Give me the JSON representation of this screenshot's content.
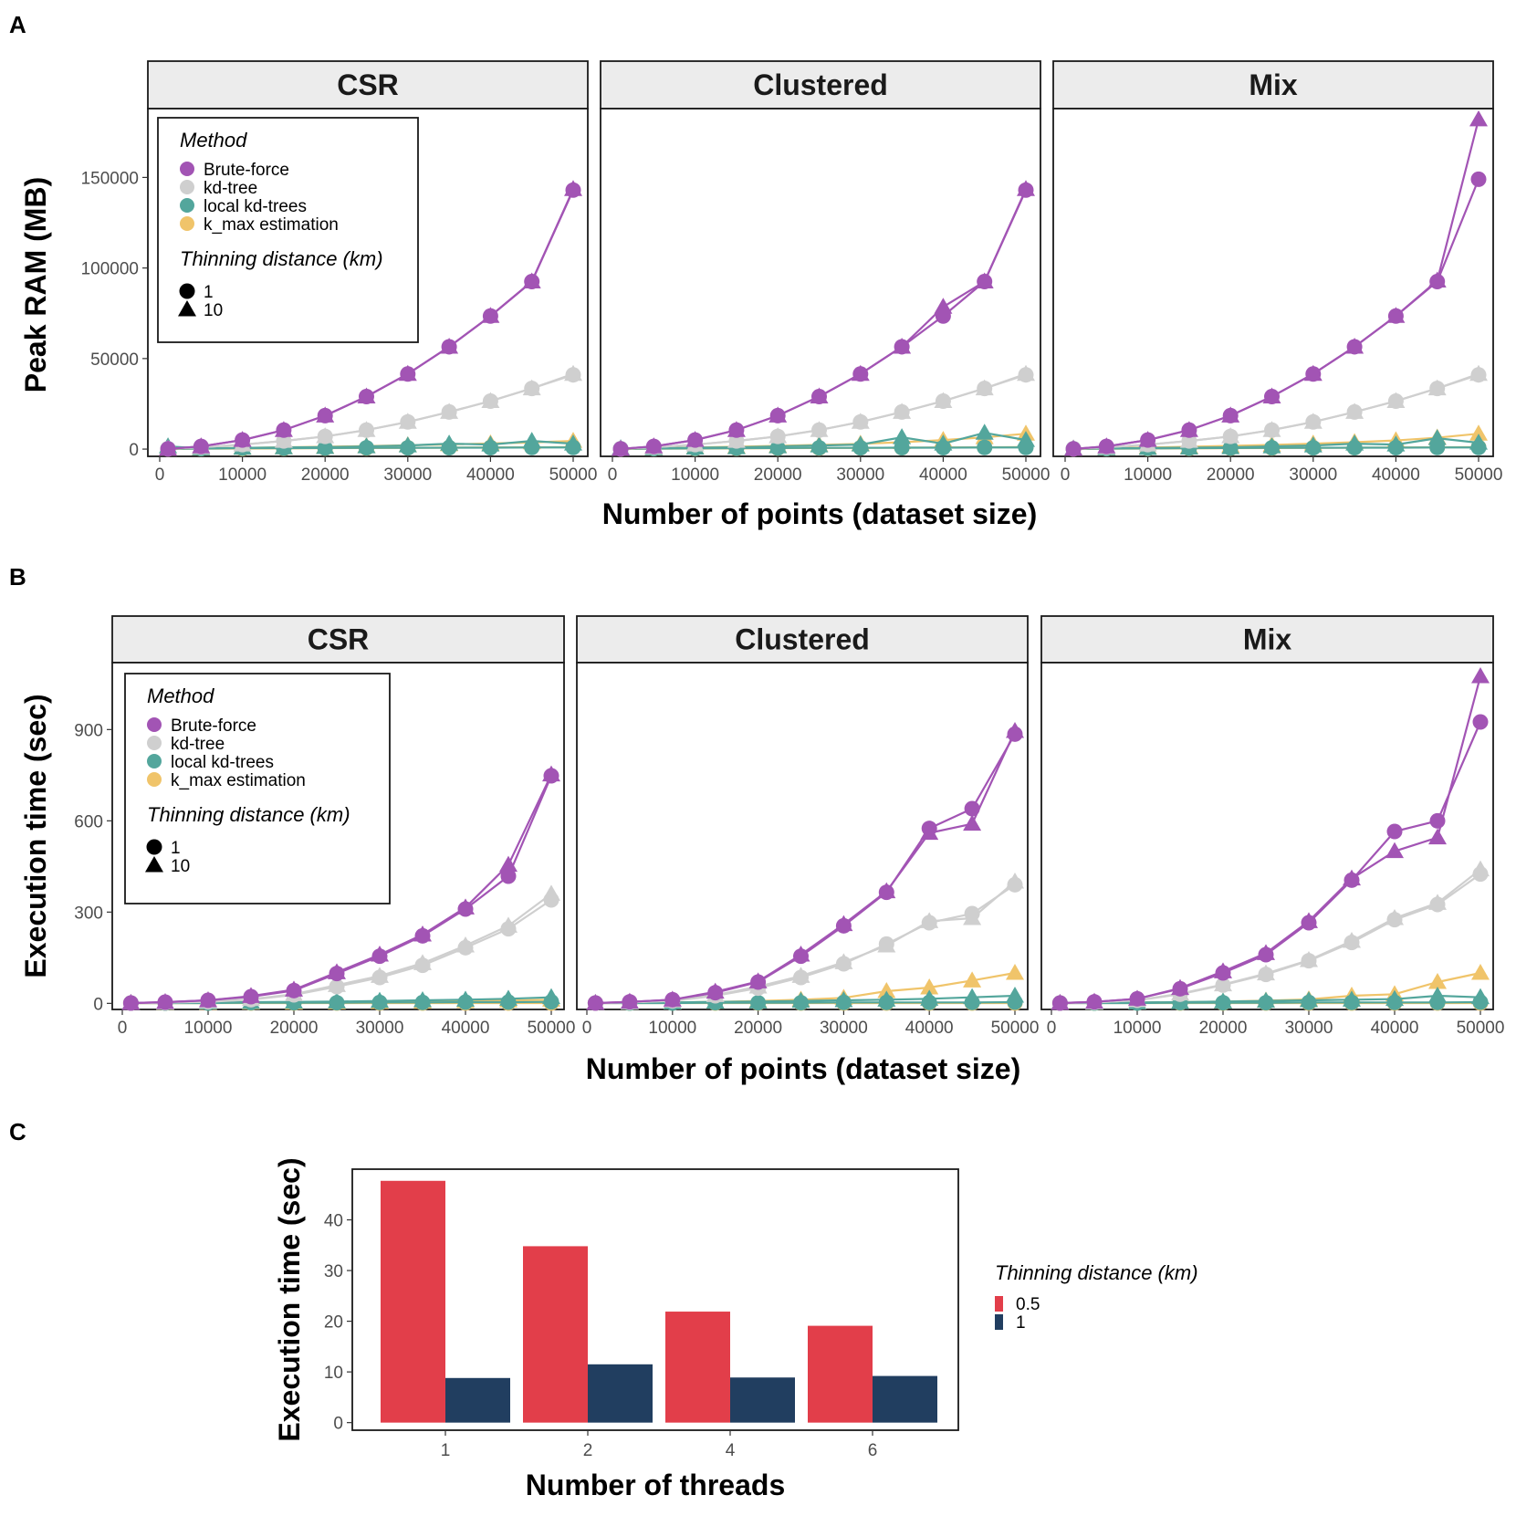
{
  "panel_labels": {
    "a": "A",
    "b": "B",
    "c": "C"
  },
  "colors": {
    "Brute-force": "#a254b4",
    "kd-tree": "#cfcfcf",
    "local kd-trees": "#53a69c",
    "k_max estimation": "#f0c46a",
    "thin_05": "#e23e4a",
    "thin_1": "#213e60"
  },
  "chart_data": [
    {
      "id": "A",
      "type": "line",
      "facets": [
        "CSR",
        "Clustered",
        "Mix"
      ],
      "xlabel": "Number of points (dataset size)",
      "ylabel": "Peak RAM (MB)",
      "x": [
        1000,
        5000,
        10000,
        15000,
        20000,
        25000,
        30000,
        35000,
        40000,
        45000,
        50000
      ],
      "xlim": [
        0,
        50000
      ],
      "xticks": [
        0,
        10000,
        20000,
        30000,
        40000,
        50000
      ],
      "ylim": [
        -4000,
        188000
      ],
      "yticks": [
        0,
        50000,
        100000,
        150000
      ],
      "legend": {
        "method_title": "Method",
        "methods": [
          "Brute-force",
          "kd-tree",
          "local kd-trees",
          "k_max estimation"
        ],
        "shape_title": "Thinning distance (km)",
        "shapes": [
          "1",
          "10"
        ]
      },
      "series": [
        {
          "facet": "CSR",
          "method": "Brute-force",
          "thinning": "1",
          "values": [
            100,
            1500,
            5000,
            10500,
            18500,
            29000,
            41500,
            56500,
            73500,
            92500,
            143000
          ]
        },
        {
          "facet": "CSR",
          "method": "Brute-force",
          "thinning": "10",
          "values": [
            100,
            1500,
            5000,
            10500,
            18500,
            29000,
            41500,
            56500,
            73500,
            92500,
            143500
          ]
        },
        {
          "facet": "CSR",
          "method": "kd-tree",
          "thinning": "1",
          "values": [
            200,
            1000,
            2500,
            4500,
            7000,
            10500,
            15000,
            20500,
            26500,
            33500,
            41000
          ]
        },
        {
          "facet": "CSR",
          "method": "kd-tree",
          "thinning": "10",
          "values": [
            200,
            1000,
            2500,
            4500,
            7000,
            10500,
            15000,
            20500,
            26500,
            33500,
            41500
          ]
        },
        {
          "facet": "CSR",
          "method": "local kd-trees",
          "thinning": "1",
          "values": [
            200,
            300,
            500,
            500,
            600,
            700,
            700,
            800,
            800,
            900,
            900
          ]
        },
        {
          "facet": "CSR",
          "method": "local kd-trees",
          "thinning": "10",
          "values": [
            1500,
            400,
            700,
            900,
            1100,
            1500,
            2000,
            3000,
            2500,
            4500,
            3000
          ]
        },
        {
          "facet": "CSR",
          "method": "k_max estimation",
          "thinning": "1",
          "values": [
            100,
            200,
            300,
            400,
            500,
            600,
            700,
            800,
            900,
            1000,
            1100
          ]
        },
        {
          "facet": "CSR",
          "method": "k_max estimation",
          "thinning": "10",
          "values": [
            200,
            400,
            700,
            1000,
            1300,
            1700,
            2100,
            2600,
            3100,
            3700,
            4500
          ]
        },
        {
          "facet": "Clustered",
          "method": "Brute-force",
          "thinning": "1",
          "values": [
            100,
            1500,
            5000,
            10500,
            18500,
            29000,
            41500,
            56500,
            73500,
            92500,
            143000
          ]
        },
        {
          "facet": "Clustered",
          "method": "Brute-force",
          "thinning": "10",
          "values": [
            100,
            1500,
            5000,
            10500,
            18500,
            29000,
            41500,
            56500,
            78500,
            92500,
            143500
          ]
        },
        {
          "facet": "Clustered",
          "method": "kd-tree",
          "thinning": "1",
          "values": [
            200,
            1000,
            2500,
            4500,
            7000,
            10500,
            15000,
            20500,
            26500,
            33500,
            41000
          ]
        },
        {
          "facet": "Clustered",
          "method": "kd-tree",
          "thinning": "10",
          "values": [
            200,
            1000,
            2500,
            4500,
            7000,
            10500,
            15000,
            20500,
            26500,
            33500,
            41500
          ]
        },
        {
          "facet": "Clustered",
          "method": "local kd-trees",
          "thinning": "1",
          "values": [
            200,
            300,
            400,
            500,
            600,
            700,
            700,
            800,
            800,
            900,
            900
          ]
        },
        {
          "facet": "Clustered",
          "method": "local kd-trees",
          "thinning": "10",
          "values": [
            500,
            400,
            800,
            1000,
            1500,
            2000,
            2500,
            6500,
            3000,
            9000,
            5000
          ]
        },
        {
          "facet": "Clustered",
          "method": "k_max estimation",
          "thinning": "1",
          "values": [
            100,
            200,
            300,
            400,
            500,
            600,
            700,
            800,
            900,
            1000,
            1100
          ]
        },
        {
          "facet": "Clustered",
          "method": "k_max estimation",
          "thinning": "10",
          "values": [
            200,
            500,
            900,
            1300,
            1800,
            2300,
            2900,
            3800,
            5000,
            6500,
            8500
          ]
        },
        {
          "facet": "Mix",
          "method": "Brute-force",
          "thinning": "1",
          "values": [
            100,
            1500,
            5000,
            10500,
            18500,
            29000,
            41500,
            56500,
            73500,
            92500,
            149000
          ]
        },
        {
          "facet": "Mix",
          "method": "Brute-force",
          "thinning": "10",
          "values": [
            100,
            1500,
            5000,
            10500,
            18500,
            29000,
            41500,
            56500,
            73500,
            93000,
            182000
          ]
        },
        {
          "facet": "Mix",
          "method": "kd-tree",
          "thinning": "1",
          "values": [
            200,
            1000,
            2500,
            4500,
            7000,
            10500,
            15000,
            20500,
            26500,
            33500,
            41000
          ]
        },
        {
          "facet": "Mix",
          "method": "kd-tree",
          "thinning": "10",
          "values": [
            200,
            1000,
            2500,
            4500,
            7000,
            10500,
            15000,
            20500,
            26500,
            33500,
            41500
          ]
        },
        {
          "facet": "Mix",
          "method": "local kd-trees",
          "thinning": "1",
          "values": [
            200,
            300,
            400,
            500,
            600,
            700,
            700,
            800,
            800,
            900,
            900
          ]
        },
        {
          "facet": "Mix",
          "method": "local kd-trees",
          "thinning": "10",
          "values": [
            300,
            400,
            600,
            800,
            1000,
            1500,
            2000,
            3000,
            2500,
            6000,
            3500
          ]
        },
        {
          "facet": "Mix",
          "method": "k_max estimation",
          "thinning": "1",
          "values": [
            100,
            200,
            300,
            400,
            500,
            600,
            700,
            800,
            900,
            1000,
            1100
          ]
        },
        {
          "facet": "Mix",
          "method": "k_max estimation",
          "thinning": "10",
          "values": [
            200,
            500,
            900,
            1300,
            1800,
            2300,
            3000,
            3800,
            4800,
            6300,
            8500
          ]
        }
      ]
    },
    {
      "id": "B",
      "type": "line",
      "facets": [
        "CSR",
        "Clustered",
        "Mix"
      ],
      "xlabel": "Number of points (dataset size)",
      "ylabel": "Execution time (sec)",
      "x": [
        1000,
        5000,
        10000,
        15000,
        20000,
        25000,
        30000,
        35000,
        40000,
        45000,
        50000
      ],
      "xlim": [
        0,
        50000
      ],
      "xticks": [
        0,
        10000,
        20000,
        30000,
        40000,
        50000
      ],
      "ylim": [
        -20,
        1120
      ],
      "yticks": [
        0,
        300,
        600,
        900
      ],
      "legend": {
        "method_title": "Method",
        "methods": [
          "Brute-force",
          "kd-tree",
          "local kd-trees",
          "k_max estimation"
        ],
        "shape_title": "Thinning distance (km)",
        "shapes": [
          "1",
          "10"
        ]
      },
      "series": [
        {
          "facet": "CSR",
          "method": "Brute-force",
          "thinning": "1",
          "values": [
            1,
            4,
            10,
            22,
            42,
            98,
            155,
            222,
            310,
            418,
            748
          ]
        },
        {
          "facet": "CSR",
          "method": "Brute-force",
          "thinning": "10",
          "values": [
            1,
            4,
            10,
            24,
            45,
            102,
            160,
            226,
            315,
            455,
            752
          ]
        },
        {
          "facet": "CSR",
          "method": "kd-tree",
          "thinning": "1",
          "values": [
            1,
            2,
            5,
            12,
            28,
            55,
            85,
            125,
            183,
            245,
            340
          ]
        },
        {
          "facet": "CSR",
          "method": "kd-tree",
          "thinning": "10",
          "values": [
            1,
            2,
            6,
            14,
            30,
            60,
            90,
            132,
            190,
            255,
            360
          ]
        },
        {
          "facet": "CSR",
          "method": "local kd-trees",
          "thinning": "1",
          "values": [
            1,
            1,
            1,
            2,
            2,
            2,
            3,
            3,
            4,
            4,
            5
          ]
        },
        {
          "facet": "CSR",
          "method": "local kd-trees",
          "thinning": "10",
          "values": [
            1,
            2,
            3,
            4,
            5,
            6,
            8,
            10,
            12,
            15,
            20
          ]
        },
        {
          "facet": "CSR",
          "method": "k_max estimation",
          "thinning": "1",
          "values": [
            1,
            1,
            1,
            1,
            1,
            1,
            1,
            1,
            1,
            1,
            1
          ]
        },
        {
          "facet": "CSR",
          "method": "k_max estimation",
          "thinning": "10",
          "values": [
            1,
            1,
            1,
            2,
            2,
            3,
            4,
            5,
            7,
            9,
            12
          ]
        },
        {
          "facet": "Clustered",
          "method": "Brute-force",
          "thinning": "1",
          "values": [
            1,
            5,
            12,
            35,
            70,
            155,
            255,
            365,
            575,
            640,
            885
          ]
        },
        {
          "facet": "Clustered",
          "method": "Brute-force",
          "thinning": "10",
          "values": [
            1,
            5,
            12,
            38,
            72,
            160,
            260,
            368,
            560,
            590,
            895
          ]
        },
        {
          "facet": "Clustered",
          "method": "kd-tree",
          "thinning": "1",
          "values": [
            1,
            3,
            8,
            25,
            50,
            85,
            130,
            195,
            265,
            295,
            390
          ]
        },
        {
          "facet": "Clustered",
          "method": "kd-tree",
          "thinning": "10",
          "values": [
            1,
            3,
            9,
            27,
            55,
            90,
            135,
            190,
            270,
            280,
            400
          ]
        },
        {
          "facet": "Clustered",
          "method": "local kd-trees",
          "thinning": "1",
          "values": [
            1,
            1,
            1,
            2,
            2,
            2,
            3,
            3,
            3,
            3,
            4
          ]
        },
        {
          "facet": "Clustered",
          "method": "local kd-trees",
          "thinning": "10",
          "values": [
            1,
            2,
            3,
            5,
            6,
            8,
            10,
            12,
            15,
            20,
            25
          ]
        },
        {
          "facet": "Clustered",
          "method": "k_max estimation",
          "thinning": "1",
          "values": [
            1,
            1,
            1,
            1,
            1,
            1,
            1,
            1,
            1,
            1,
            1
          ]
        },
        {
          "facet": "Clustered",
          "method": "k_max estimation",
          "thinning": "10",
          "values": [
            1,
            2,
            3,
            5,
            8,
            12,
            18,
            40,
            52,
            75,
            100
          ]
        },
        {
          "facet": "Mix",
          "method": "Brute-force",
          "thinning": "1",
          "values": [
            1,
            5,
            15,
            48,
            100,
            160,
            265,
            405,
            565,
            600,
            925
          ]
        },
        {
          "facet": "Mix",
          "method": "Brute-force",
          "thinning": "10",
          "values": [
            1,
            5,
            15,
            50,
            105,
            165,
            270,
            410,
            500,
            545,
            1075
          ]
        },
        {
          "facet": "Mix",
          "method": "kd-tree",
          "thinning": "1",
          "values": [
            1,
            3,
            10,
            30,
            60,
            95,
            140,
            200,
            275,
            325,
            425
          ]
        },
        {
          "facet": "Mix",
          "method": "kd-tree",
          "thinning": "10",
          "values": [
            1,
            3,
            10,
            32,
            62,
            98,
            142,
            205,
            280,
            330,
            440
          ]
        },
        {
          "facet": "Mix",
          "method": "local kd-trees",
          "thinning": "1",
          "values": [
            1,
            1,
            1,
            2,
            2,
            2,
            3,
            3,
            3,
            3,
            4
          ]
        },
        {
          "facet": "Mix",
          "method": "local kd-trees",
          "thinning": "10",
          "values": [
            1,
            2,
            3,
            4,
            6,
            8,
            10,
            12,
            14,
            25,
            20
          ]
        },
        {
          "facet": "Mix",
          "method": "k_max estimation",
          "thinning": "1",
          "values": [
            1,
            1,
            1,
            1,
            1,
            1,
            1,
            1,
            1,
            1,
            1
          ]
        },
        {
          "facet": "Mix",
          "method": "k_max estimation",
          "thinning": "10",
          "values": [
            1,
            2,
            3,
            4,
            6,
            9,
            13,
            25,
            30,
            70,
            100
          ]
        }
      ]
    },
    {
      "id": "C",
      "type": "bar",
      "xlabel": "Number of threads",
      "ylabel": "Execution time (sec)",
      "categories": [
        "1",
        "2",
        "4",
        "6"
      ],
      "ylim": [
        -1.5,
        50
      ],
      "yticks": [
        0,
        10,
        20,
        30,
        40
      ],
      "legend": {
        "title": "Thinning distance (km)"
      },
      "series": [
        {
          "name": "0.5",
          "values": [
            47.7,
            34.8,
            21.9,
            19.1
          ]
        },
        {
          "name": "1",
          "values": [
            8.8,
            11.5,
            8.9,
            9.2
          ]
        }
      ]
    }
  ]
}
